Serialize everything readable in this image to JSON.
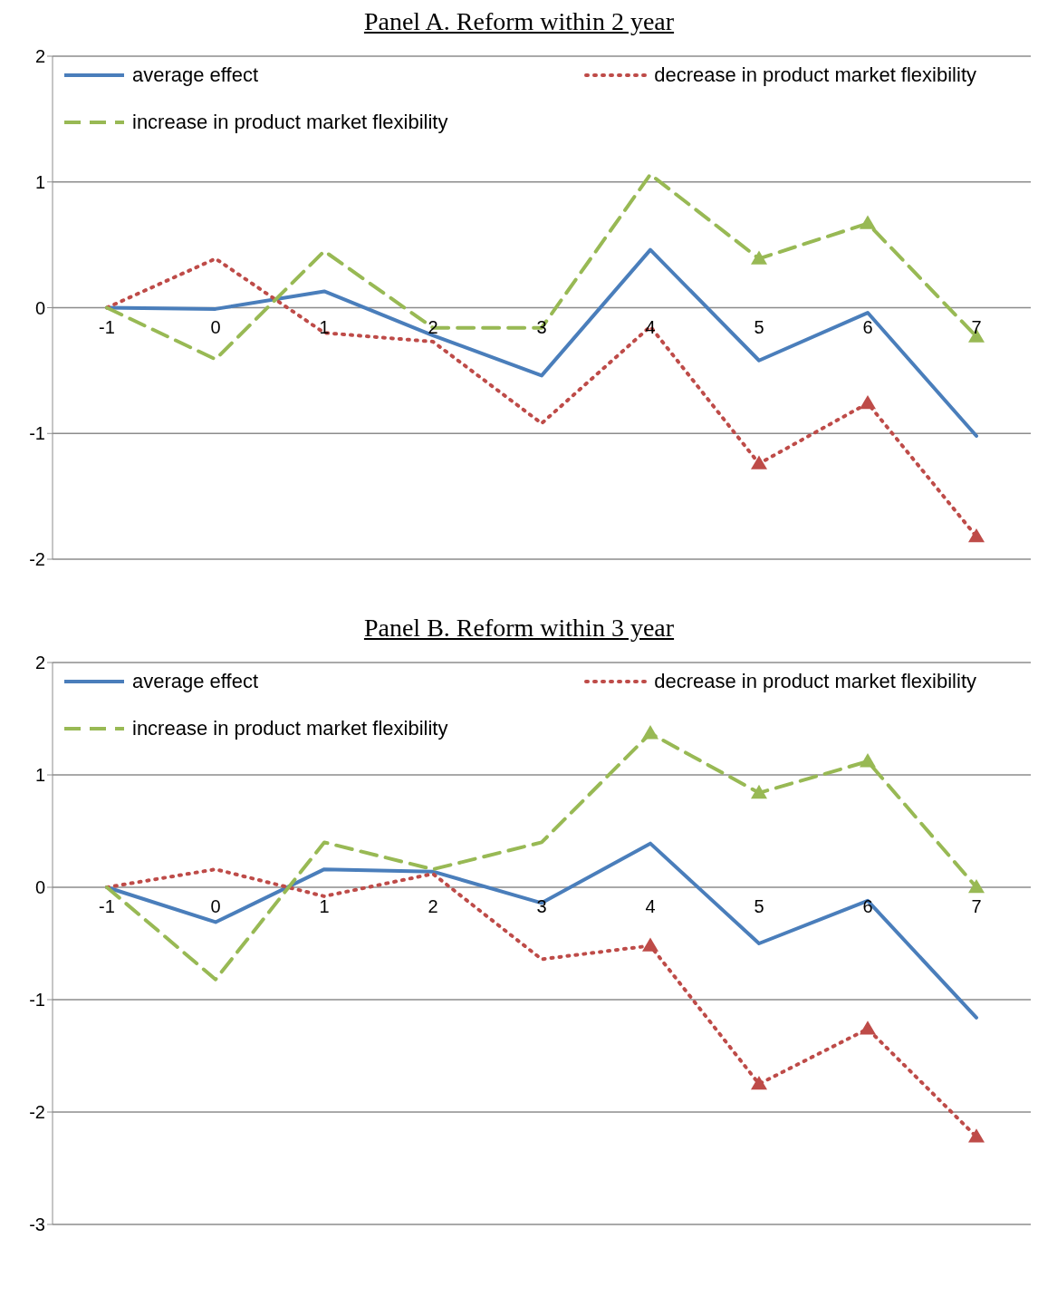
{
  "chart_data": [
    {
      "type": "line",
      "title": "Panel A. Reform within 2 year",
      "categories": [
        "-1",
        "0",
        "1",
        "2",
        "3",
        "4",
        "5",
        "6",
        "7"
      ],
      "ylim": [
        -2,
        2
      ],
      "yticks": [
        -2,
        -1,
        0,
        1,
        2
      ],
      "grid": "y",
      "legend": "top",
      "series": [
        {
          "name": "average effect",
          "color": "#4a7ebb",
          "line_style": "solid",
          "values": [
            0,
            -0.01,
            0.13,
            -0.22,
            -0.54,
            0.46,
            -0.42,
            -0.04,
            -1.02
          ]
        },
        {
          "name": "decrease in product market flexibility",
          "color": "#be4b48",
          "line_style": "dotted",
          "values": [
            0,
            0.39,
            -0.2,
            -0.27,
            -0.92,
            -0.15,
            -1.24,
            -0.76,
            -1.82
          ]
        },
        {
          "name": "increase in product market flexibility",
          "color": "#98b954",
          "line_style": "dashed",
          "values": [
            0,
            -0.41,
            0.45,
            -0.16,
            -0.16,
            1.06,
            0.39,
            0.67,
            -0.23
          ]
        },
        {
          "type": "scatter",
          "marker": "triangle",
          "color": "#be4b48",
          "x": [
            "5",
            "6",
            "7"
          ],
          "values": [
            -1.24,
            -0.76,
            -1.82
          ]
        },
        {
          "type": "scatter",
          "marker": "triangle",
          "color": "#98b954",
          "x": [
            "5",
            "6",
            "7"
          ],
          "values": [
            0.39,
            0.67,
            -0.23
          ]
        }
      ]
    },
    {
      "type": "line",
      "title": "Panel B. Reform within 3 year",
      "categories": [
        "-1",
        "0",
        "1",
        "2",
        "3",
        "4",
        "5",
        "6",
        "7"
      ],
      "ylim": [
        -3,
        2
      ],
      "yticks": [
        -3,
        -2,
        -1,
        0,
        1,
        2
      ],
      "grid": "y",
      "legend": "top",
      "series": [
        {
          "name": "average effect",
          "color": "#4a7ebb",
          "line_style": "solid",
          "values": [
            0,
            -0.31,
            0.16,
            0.14,
            -0.14,
            0.39,
            -0.5,
            -0.12,
            -1.16
          ]
        },
        {
          "name": "decrease in product market flexibility",
          "color": "#be4b48",
          "line_style": "dotted",
          "values": [
            0,
            0.16,
            -0.08,
            0.12,
            -0.64,
            -0.52,
            -1.75,
            -1.26,
            -2.22
          ]
        },
        {
          "name": "increase in product market flexibility",
          "color": "#98b954",
          "line_style": "dashed",
          "values": [
            0,
            -0.82,
            0.4,
            0.16,
            0.4,
            1.37,
            0.84,
            1.12,
            0
          ]
        },
        {
          "type": "scatter",
          "marker": "triangle",
          "color": "#be4b48",
          "x": [
            "4",
            "5",
            "6",
            "7"
          ],
          "values": [
            -0.52,
            -1.75,
            -1.26,
            -2.22
          ]
        },
        {
          "type": "scatter",
          "marker": "triangle",
          "color": "#98b954",
          "x": [
            "4",
            "5",
            "6",
            "7"
          ],
          "values": [
            1.37,
            0.84,
            1.12,
            0
          ]
        }
      ]
    }
  ]
}
